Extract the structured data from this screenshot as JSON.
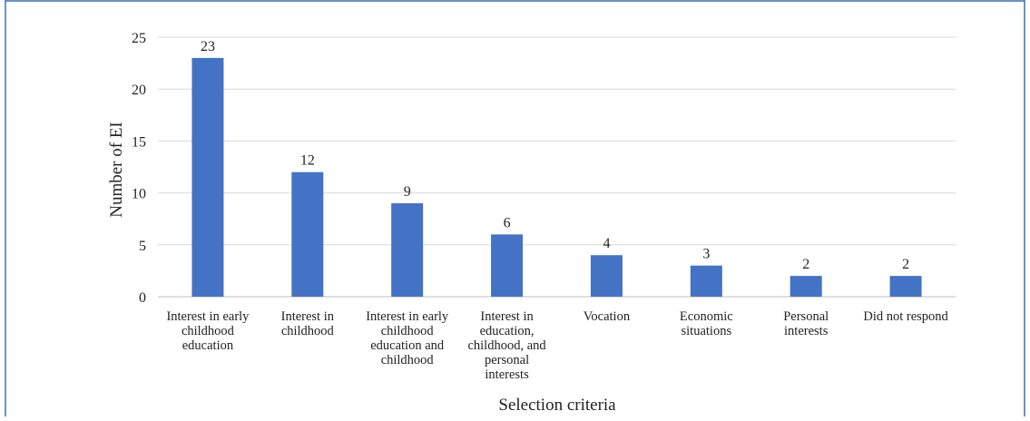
{
  "chart_data": {
    "type": "bar",
    "title": "",
    "xlabel": "Selection criteria",
    "ylabel": "Number of EI",
    "ylim": [
      0,
      25
    ],
    "yticks": [
      "0",
      "5",
      "10",
      "15",
      "20",
      "25"
    ],
    "grid": true,
    "categories": [
      [
        "Interest in early",
        "childhood",
        "education"
      ],
      [
        "Interest in",
        "childhood"
      ],
      [
        "Interest in early",
        "childhood",
        "education and",
        "childhood"
      ],
      [
        "Interest in",
        "education,",
        "childhood, and",
        "personal",
        "interests"
      ],
      [
        "Vocation"
      ],
      [
        "Economic",
        "situations"
      ],
      [
        "Personal",
        "interests"
      ],
      [
        "Did not respond"
      ]
    ],
    "values": [
      23,
      12,
      9,
      6,
      4,
      3,
      2,
      2
    ],
    "data_labels": [
      "23",
      "12",
      "9",
      "6",
      "4",
      "3",
      "2",
      "2"
    ],
    "bar_color": "#4472c4",
    "grid_color": "#d9d9d9",
    "frame_color": "#3f6fb0"
  }
}
